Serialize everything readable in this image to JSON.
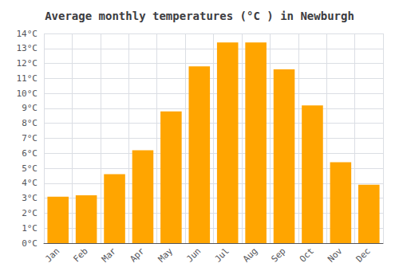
{
  "chart_data": {
    "type": "bar",
    "title": "Average monthly temperatures (°C ) in Newburgh",
    "categories": [
      "Jan",
      "Feb",
      "Mar",
      "Apr",
      "May",
      "Jun",
      "Jul",
      "Aug",
      "Sep",
      "Oct",
      "Nov",
      "Dec"
    ],
    "values": [
      3.1,
      3.2,
      4.6,
      6.2,
      8.8,
      11.8,
      13.4,
      13.4,
      11.6,
      9.2,
      5.4,
      3.9
    ],
    "color": "#FFA500",
    "ylim": [
      0,
      14
    ],
    "yticks": [
      {
        "value": 0,
        "label": "0°C"
      },
      {
        "value": 1,
        "label": "1°C"
      },
      {
        "value": 2,
        "label": "2°C"
      },
      {
        "value": 3,
        "label": "3°C"
      },
      {
        "value": 4,
        "label": "4°C"
      },
      {
        "value": 5,
        "label": "5°C"
      },
      {
        "value": 6,
        "label": "6°C"
      },
      {
        "value": 7,
        "label": "7°C"
      },
      {
        "value": 8,
        "label": "8°C"
      },
      {
        "value": 9,
        "label": "9°C"
      },
      {
        "value": 10,
        "label": "10°C"
      },
      {
        "value": 11,
        "label": "11°C"
      },
      {
        "value": 12,
        "label": "12°C"
      },
      {
        "value": 13,
        "label": "13°C"
      },
      {
        "value": 14,
        "label": "14°C"
      }
    ],
    "grid": true
  }
}
